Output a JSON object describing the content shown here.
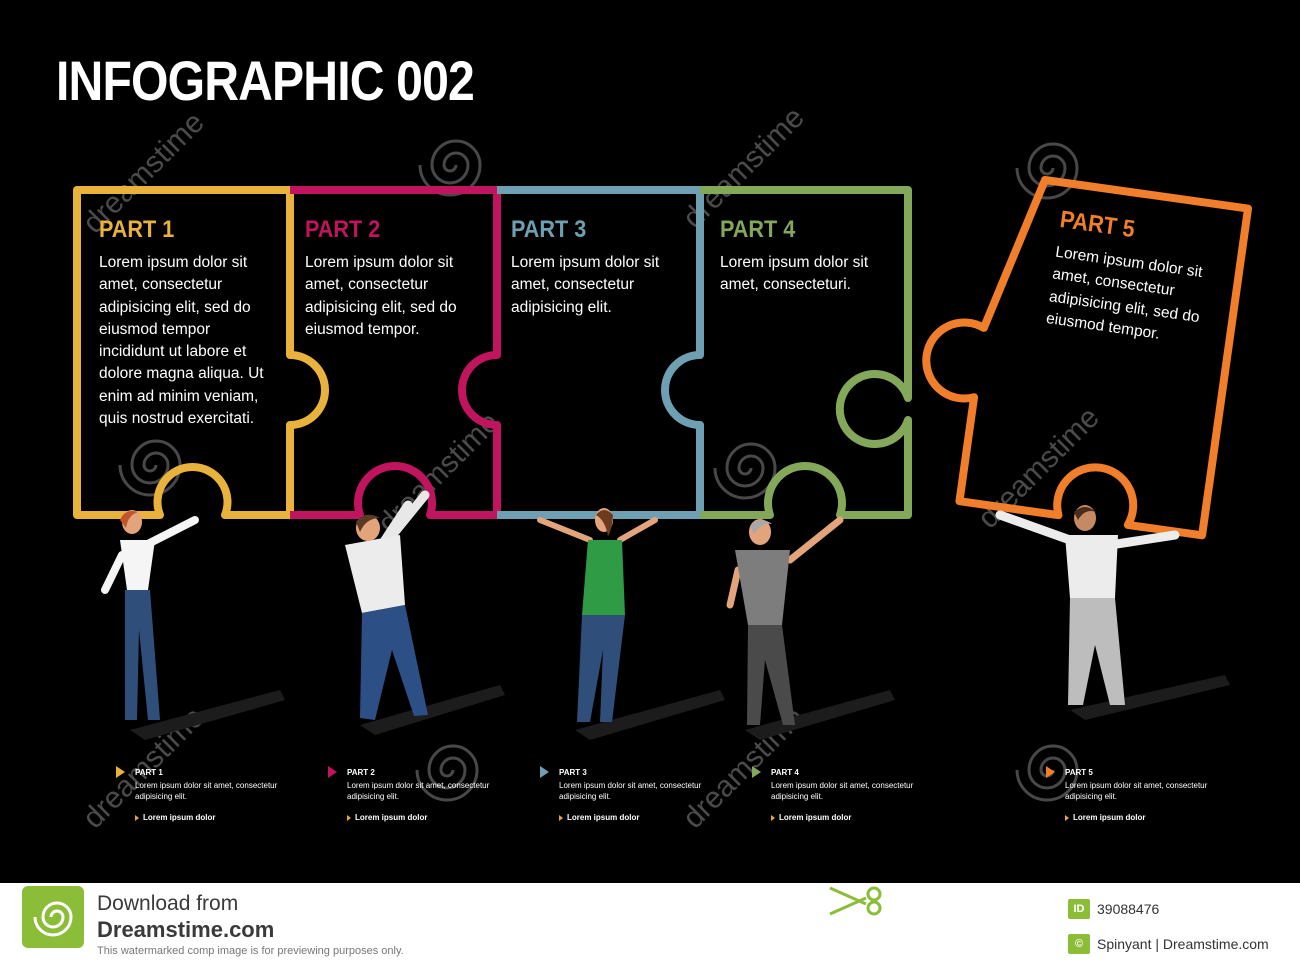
{
  "title": "INFOGRAPHIC 002",
  "colors": {
    "background": "#000000",
    "part1": "#e9b23c",
    "part2": "#c0145e",
    "part3": "#6f9fb3",
    "part4": "#83a85a",
    "part5": "#f07e2b",
    "footer_accent": "#8bbd38"
  },
  "parts": [
    {
      "label": "PART 1",
      "text": "Lorem ipsum dolor sit amet, consectetur adipisicing elit, sed do eiusmod tempor incididunt ut labore et dolore magna aliqua. Ut enim ad minim veniam, quis nostrud exercitati."
    },
    {
      "label": "PART 2",
      "text": "Lorem ipsum dolor sit amet, consectetur adipisicing elit, sed do eiusmod tempor."
    },
    {
      "label": "PART 3",
      "text": "Lorem ipsum dolor sit amet, consectetur adipisicing elit."
    },
    {
      "label": "PART 4",
      "text": "Lorem ipsum dolor sit amet, consecteturi."
    },
    {
      "label": "PART 5",
      "text": "Lorem ipsum dolor sit amet, consectetur adipisicing elit, sed do eiusmod tempor."
    }
  ],
  "captions": [
    {
      "title": "PART 1",
      "body": "Lorem ipsum dolor sit amet, consectetur adipisicing elit.",
      "link": "Lorem ipsum dolor"
    },
    {
      "title": "PART 2",
      "body": "Lorem ipsum dolor sit amet, consectetur adipisicing elit.",
      "link": "Lorem ipsum dolor"
    },
    {
      "title": "PART 3",
      "body": "Lorem ipsum dolor sit amet, consectetur adipisicing elit.",
      "link": "Lorem ipsum dolor"
    },
    {
      "title": "PART 4",
      "body": "Lorem ipsum dolor sit amet, consectetur adipisicing elit.",
      "link": "Lorem ipsum dolor"
    },
    {
      "title": "PART 5",
      "body": "Lorem ipsum dolor sit amet, consectetur adipisicing elit.",
      "link": "Lorem ipsum dolor"
    }
  ],
  "watermark": "dreamstime",
  "footer": {
    "download_line1": "Download from",
    "download_line2": "Dreamstime.com",
    "notice": "This watermarked comp image is for previewing purposes only.",
    "id_badge": "ID",
    "image_id": "39088476",
    "copyright_badge": "©",
    "credit": "Spinyant | Dreamstime.com"
  }
}
